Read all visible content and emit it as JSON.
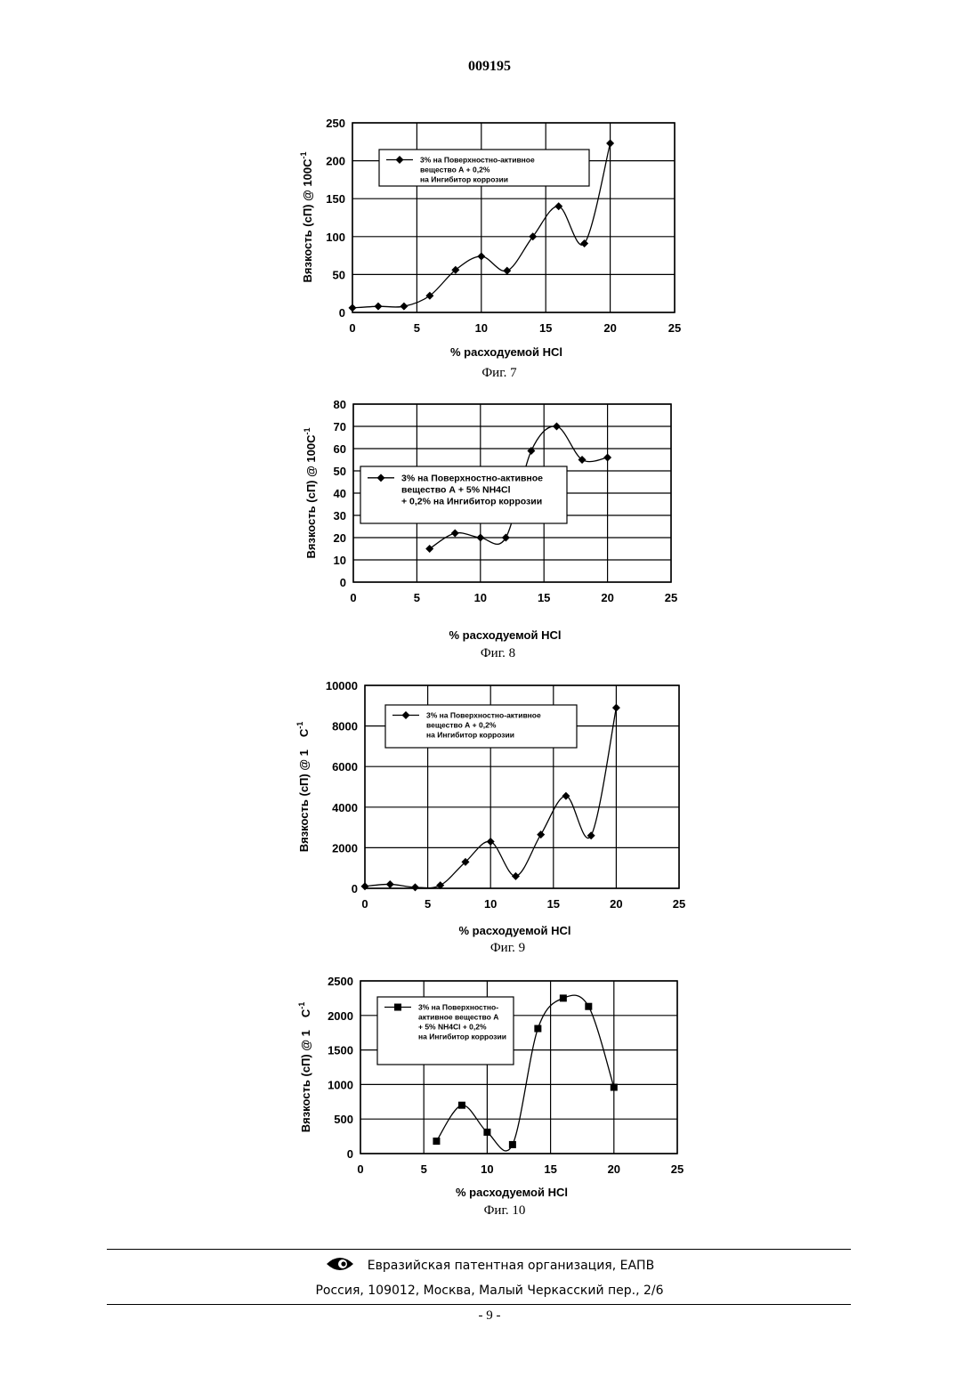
{
  "doc_number": "009195",
  "chart_data": [
    {
      "type": "line",
      "caption": "Фиг. 7",
      "xlabel": "% расходуемой HCl",
      "ylabel": "Вязкость (сП) @ 100С",
      "ylabel_sup": "-1",
      "xlim": [
        0,
        25
      ],
      "ylim": [
        0,
        250
      ],
      "xticks": [
        0,
        5,
        10,
        15,
        20,
        25
      ],
      "yticks": [
        0,
        50,
        100,
        150,
        200,
        250
      ],
      "grid": true,
      "legend_lines": [
        "3% на Поверхностно-активное",
        "вещество А + 0,2%",
        "на Ингибитор коррозии"
      ],
      "series": [
        {
          "marker": "diamond",
          "x": [
            0,
            2,
            4,
            6,
            8,
            10,
            12,
            14,
            16,
            18,
            20
          ],
          "y": [
            6,
            8,
            8,
            22,
            56,
            74,
            55,
            100,
            140,
            91,
            223
          ]
        }
      ]
    },
    {
      "type": "line",
      "caption": "Фиг. 8",
      "xlabel": "% расходуемой HCl",
      "ylabel": "Вязкость (сП) @ 100С",
      "ylabel_sup": "-1",
      "xlim": [
        0,
        25
      ],
      "ylim": [
        0,
        80
      ],
      "xticks": [
        0,
        5,
        10,
        15,
        20,
        25
      ],
      "yticks": [
        0,
        10,
        20,
        30,
        40,
        50,
        60,
        70,
        80
      ],
      "grid": true,
      "legend_lines": [
        "3% на Поверхностно-активное",
        "вещество А + 5% NH4Cl",
        "+ 0,2% на Ингибитор коррозии"
      ],
      "series": [
        {
          "marker": "diamond",
          "x": [
            6,
            8,
            10,
            12,
            14,
            16,
            18,
            20
          ],
          "y": [
            15,
            22,
            20,
            20,
            59,
            70,
            55,
            56
          ]
        }
      ]
    },
    {
      "type": "line",
      "caption": "Фиг. 9",
      "xlabel": "% расходуемой HCl",
      "ylabel": "Вязкость (сП) @ 1",
      "ylabel_unit": "С",
      "ylabel_sup": "-1",
      "xlim": [
        0,
        25
      ],
      "ylim": [
        0,
        10000
      ],
      "xticks": [
        0,
        5,
        10,
        15,
        20,
        25
      ],
      "yticks": [
        0,
        2000,
        4000,
        6000,
        8000,
        10000
      ],
      "grid": true,
      "legend_lines": [
        "3% на Поверхностно-активное",
        "вещество А + 0,2%",
        "на Ингибитор коррозии"
      ],
      "series": [
        {
          "marker": "diamond",
          "x": [
            0,
            2,
            4,
            6,
            8,
            10,
            12,
            14,
            16,
            18,
            20
          ],
          "y": [
            100,
            200,
            50,
            150,
            1300,
            2300,
            600,
            2650,
            4550,
            2600,
            8900
          ]
        }
      ]
    },
    {
      "type": "line",
      "caption": "Фиг. 10",
      "xlabel": "% расходуемой HCl",
      "ylabel": "Вязкость (сП) @ 1",
      "ylabel_unit": "С",
      "ylabel_sup": "-1",
      "xlim": [
        0,
        25
      ],
      "ylim": [
        0,
        2500
      ],
      "xticks": [
        0,
        5,
        10,
        15,
        20,
        25
      ],
      "yticks": [
        0,
        500,
        1000,
        1500,
        2000,
        2500
      ],
      "grid": true,
      "legend_lines": [
        "3% на Поверхностно-",
        "активное вещество А",
        "+ 5% NH4Cl + 0,2%",
        "на Ингибитор коррозии"
      ],
      "series": [
        {
          "marker": "square",
          "x": [
            6,
            8,
            10,
            12,
            14,
            16,
            18,
            20
          ],
          "y": [
            180,
            700,
            310,
            130,
            1810,
            2250,
            2130,
            960
          ]
        }
      ]
    }
  ],
  "footer": {
    "logo_icon": "eapo-logo-icon",
    "organization": "Евразийская патентная организация, ЕАПВ",
    "address": "Россия, 109012, Москва, Малый Черкасский пер., 2/6",
    "page": "- 9 -"
  }
}
